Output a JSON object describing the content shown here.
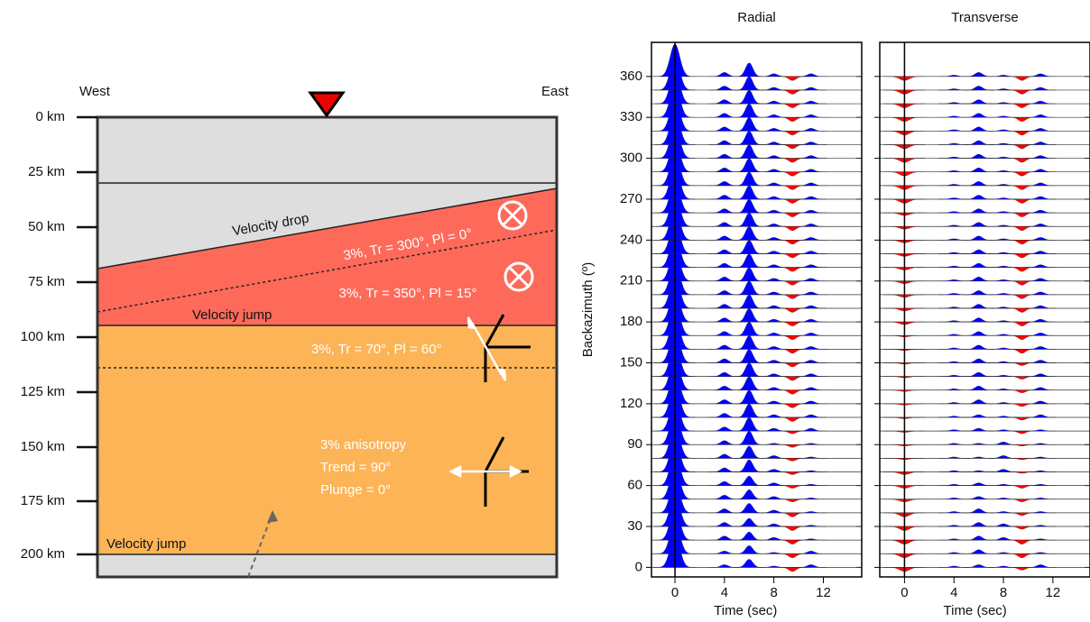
{
  "diagram": {
    "depth_labels": [
      "0 km",
      "25 km",
      "50 km",
      "75 km",
      "100 km",
      "125 km",
      "150 km",
      "175 km",
      "200 km"
    ],
    "west": "West",
    "east": "East",
    "velocity_drop": "Velocity drop",
    "upper_aniso": "3%, Tr = 300°, Pl = 0°",
    "lower_aniso": "3%, Tr = 350°, Pl = 15°",
    "velocity_jump_1": "Velocity jump",
    "mid_aniso": "3%, Tr = 70°, Pl = 60°",
    "deep_aniso": [
      "3% anisotropy",
      "Trend = 90°",
      "Plunge = 0°"
    ],
    "velocity_jump_2": "Velocity jump"
  },
  "chart_data": [
    {
      "type": "wiggle",
      "title": "Radial",
      "xlabel": "Time (sec)",
      "ylabel": "Backazimuth (º)",
      "xlim": [
        -1.9,
        15.1
      ],
      "xticks": [
        0,
        4,
        8,
        12
      ],
      "ylim": [
        -7,
        385
      ],
      "yticks": [
        0,
        30,
        60,
        90,
        120,
        150,
        180,
        210,
        240,
        270,
        300,
        330,
        360
      ],
      "positive_color": "#0000ff",
      "negative_color": "#ff0000",
      "backazimuths": [
        0,
        10,
        20,
        30,
        40,
        50,
        60,
        70,
        80,
        90,
        100,
        110,
        120,
        130,
        140,
        150,
        160,
        170,
        180,
        190,
        200,
        210,
        220,
        230,
        240,
        250,
        260,
        270,
        280,
        290,
        300,
        310,
        320,
        330,
        340,
        350,
        360
      ],
      "pulse_times": [
        0,
        4,
        6,
        8,
        9.5,
        11
      ],
      "amplitudes": [
        [
          24,
          2,
          6,
          1,
          -3,
          2
        ],
        [
          24,
          2,
          6,
          1,
          -3,
          2
        ],
        [
          24,
          3,
          6,
          2,
          -3,
          1
        ],
        [
          24,
          3,
          6,
          2,
          -3,
          1
        ],
        [
          24,
          3,
          7,
          2,
          -3,
          1
        ],
        [
          24,
          3,
          7,
          2,
          -2,
          1
        ],
        [
          24,
          3,
          7,
          2,
          -2,
          1
        ],
        [
          24,
          3,
          9,
          2,
          -2,
          1
        ],
        [
          24,
          3,
          9,
          2,
          -2,
          1
        ],
        [
          24,
          3,
          10,
          1,
          -2,
          1
        ],
        [
          24,
          3,
          10,
          2,
          -2,
          2
        ],
        [
          24,
          3,
          10,
          2,
          -3,
          2
        ],
        [
          24,
          3,
          10,
          2,
          -3,
          2
        ],
        [
          24,
          3,
          10,
          2,
          -3,
          2
        ],
        [
          24,
          3,
          10,
          2,
          -3,
          2
        ],
        [
          24,
          3,
          10,
          2,
          -3,
          2
        ],
        [
          24,
          3,
          10,
          2,
          -3,
          2
        ],
        [
          24,
          3,
          10,
          2,
          -3,
          2
        ],
        [
          24,
          3,
          10,
          2,
          -3,
          2
        ],
        [
          24,
          3,
          10,
          2,
          -3,
          2
        ],
        [
          24,
          3,
          10,
          2,
          -3,
          2
        ],
        [
          24,
          3,
          10,
          2,
          -3,
          2
        ],
        [
          24,
          3,
          10,
          2,
          -3,
          2
        ],
        [
          24,
          3,
          10,
          2,
          -3,
          2
        ],
        [
          24,
          3,
          10,
          2,
          -3,
          2
        ],
        [
          24,
          3,
          10,
          2,
          -3,
          2
        ],
        [
          24,
          3,
          10,
          2,
          -3,
          2
        ],
        [
          24,
          3,
          10,
          2,
          -3,
          2
        ],
        [
          24,
          3,
          10,
          2,
          -3,
          2
        ],
        [
          24,
          3,
          10,
          2,
          -3,
          2
        ],
        [
          24,
          3,
          10,
          2,
          -3,
          2
        ],
        [
          24,
          3,
          10,
          2,
          -3,
          2
        ],
        [
          24,
          3,
          10,
          2,
          -3,
          2
        ],
        [
          24,
          3,
          10,
          2,
          -3,
          2
        ],
        [
          24,
          3,
          10,
          2,
          -3,
          2
        ],
        [
          24,
          3,
          10,
          2,
          -3,
          2
        ],
        [
          24,
          3,
          10,
          2,
          -3,
          2
        ]
      ]
    },
    {
      "type": "wiggle",
      "title": "Transverse",
      "xlabel": "Time (sec)",
      "xlim": [
        -2,
        15
      ],
      "xticks": [
        0,
        4,
        8,
        12
      ],
      "ylim": [
        -7,
        385
      ],
      "yticks": [
        0,
        30,
        60,
        90,
        120,
        150,
        180,
        210,
        240,
        270,
        300,
        330,
        360
      ],
      "positive_color": "#0000ff",
      "negative_color": "#ff0000",
      "backazimuths": [
        0,
        10,
        20,
        30,
        40,
        50,
        60,
        70,
        80,
        90,
        100,
        110,
        120,
        130,
        140,
        150,
        160,
        170,
        180,
        190,
        200,
        210,
        220,
        230,
        240,
        250,
        260,
        270,
        280,
        290,
        300,
        310,
        320,
        330,
        340,
        350,
        360
      ],
      "pulse_times": [
        0,
        4,
        6,
        8,
        9.5,
        11
      ],
      "amplitudes": [
        [
          -3,
          1,
          2,
          1,
          -2,
          2
        ],
        [
          -3,
          1,
          3,
          1,
          -3,
          1
        ],
        [
          -3,
          1,
          3,
          2,
          -3,
          1
        ],
        [
          -3,
          1,
          3,
          2,
          -2,
          1
        ],
        [
          -3,
          1,
          3,
          1,
          -2,
          1
        ],
        [
          -2,
          1,
          2,
          1,
          -2,
          1
        ],
        [
          -2,
          1,
          2,
          1,
          -2,
          1
        ],
        [
          -2,
          1,
          1,
          2,
          -1,
          1
        ],
        [
          -1,
          1,
          1,
          2,
          -1,
          1
        ],
        [
          -1,
          1,
          1,
          2,
          -1,
          1
        ],
        [
          -1,
          1,
          2,
          1,
          -2,
          1
        ],
        [
          -1,
          1,
          2,
          1,
          -2,
          2
        ],
        [
          -1,
          1,
          3,
          1,
          -2,
          2
        ],
        [
          -1,
          1,
          3,
          1,
          -2,
          2
        ],
        [
          -1,
          1,
          3,
          1,
          -2,
          2
        ],
        [
          -1,
          1,
          3,
          1,
          -2,
          2
        ],
        [
          -1,
          1,
          3,
          1,
          -3,
          2
        ],
        [
          -1,
          1,
          3,
          1,
          -3,
          2
        ],
        [
          -2,
          1,
          3,
          1,
          -3,
          2
        ],
        [
          -2,
          1,
          3,
          1,
          -3,
          2
        ],
        [
          -2,
          1,
          3,
          1,
          -3,
          2
        ],
        [
          -2,
          1,
          3,
          1,
          -3,
          2
        ],
        [
          -2,
          1,
          3,
          1,
          -3,
          2
        ],
        [
          -2,
          1,
          3,
          1,
          -3,
          2
        ],
        [
          -2,
          1,
          3,
          1,
          -3,
          2
        ],
        [
          -2,
          1,
          3,
          1,
          -3,
          2
        ],
        [
          -2,
          1,
          3,
          1,
          -3,
          2
        ],
        [
          -3,
          1,
          3,
          1,
          -3,
          2
        ],
        [
          -3,
          1,
          3,
          1,
          -3,
          2
        ],
        [
          -3,
          1,
          3,
          1,
          -3,
          2
        ],
        [
          -3,
          1,
          3,
          1,
          -3,
          2
        ],
        [
          -3,
          1,
          3,
          1,
          -3,
          2
        ],
        [
          -3,
          1,
          3,
          1,
          -3,
          2
        ],
        [
          -3,
          1,
          3,
          1,
          -3,
          2
        ],
        [
          -3,
          1,
          3,
          1,
          -3,
          2
        ],
        [
          -3,
          1,
          3,
          1,
          -3,
          2
        ],
        [
          -3,
          1,
          3,
          1,
          -3,
          2
        ]
      ]
    }
  ]
}
